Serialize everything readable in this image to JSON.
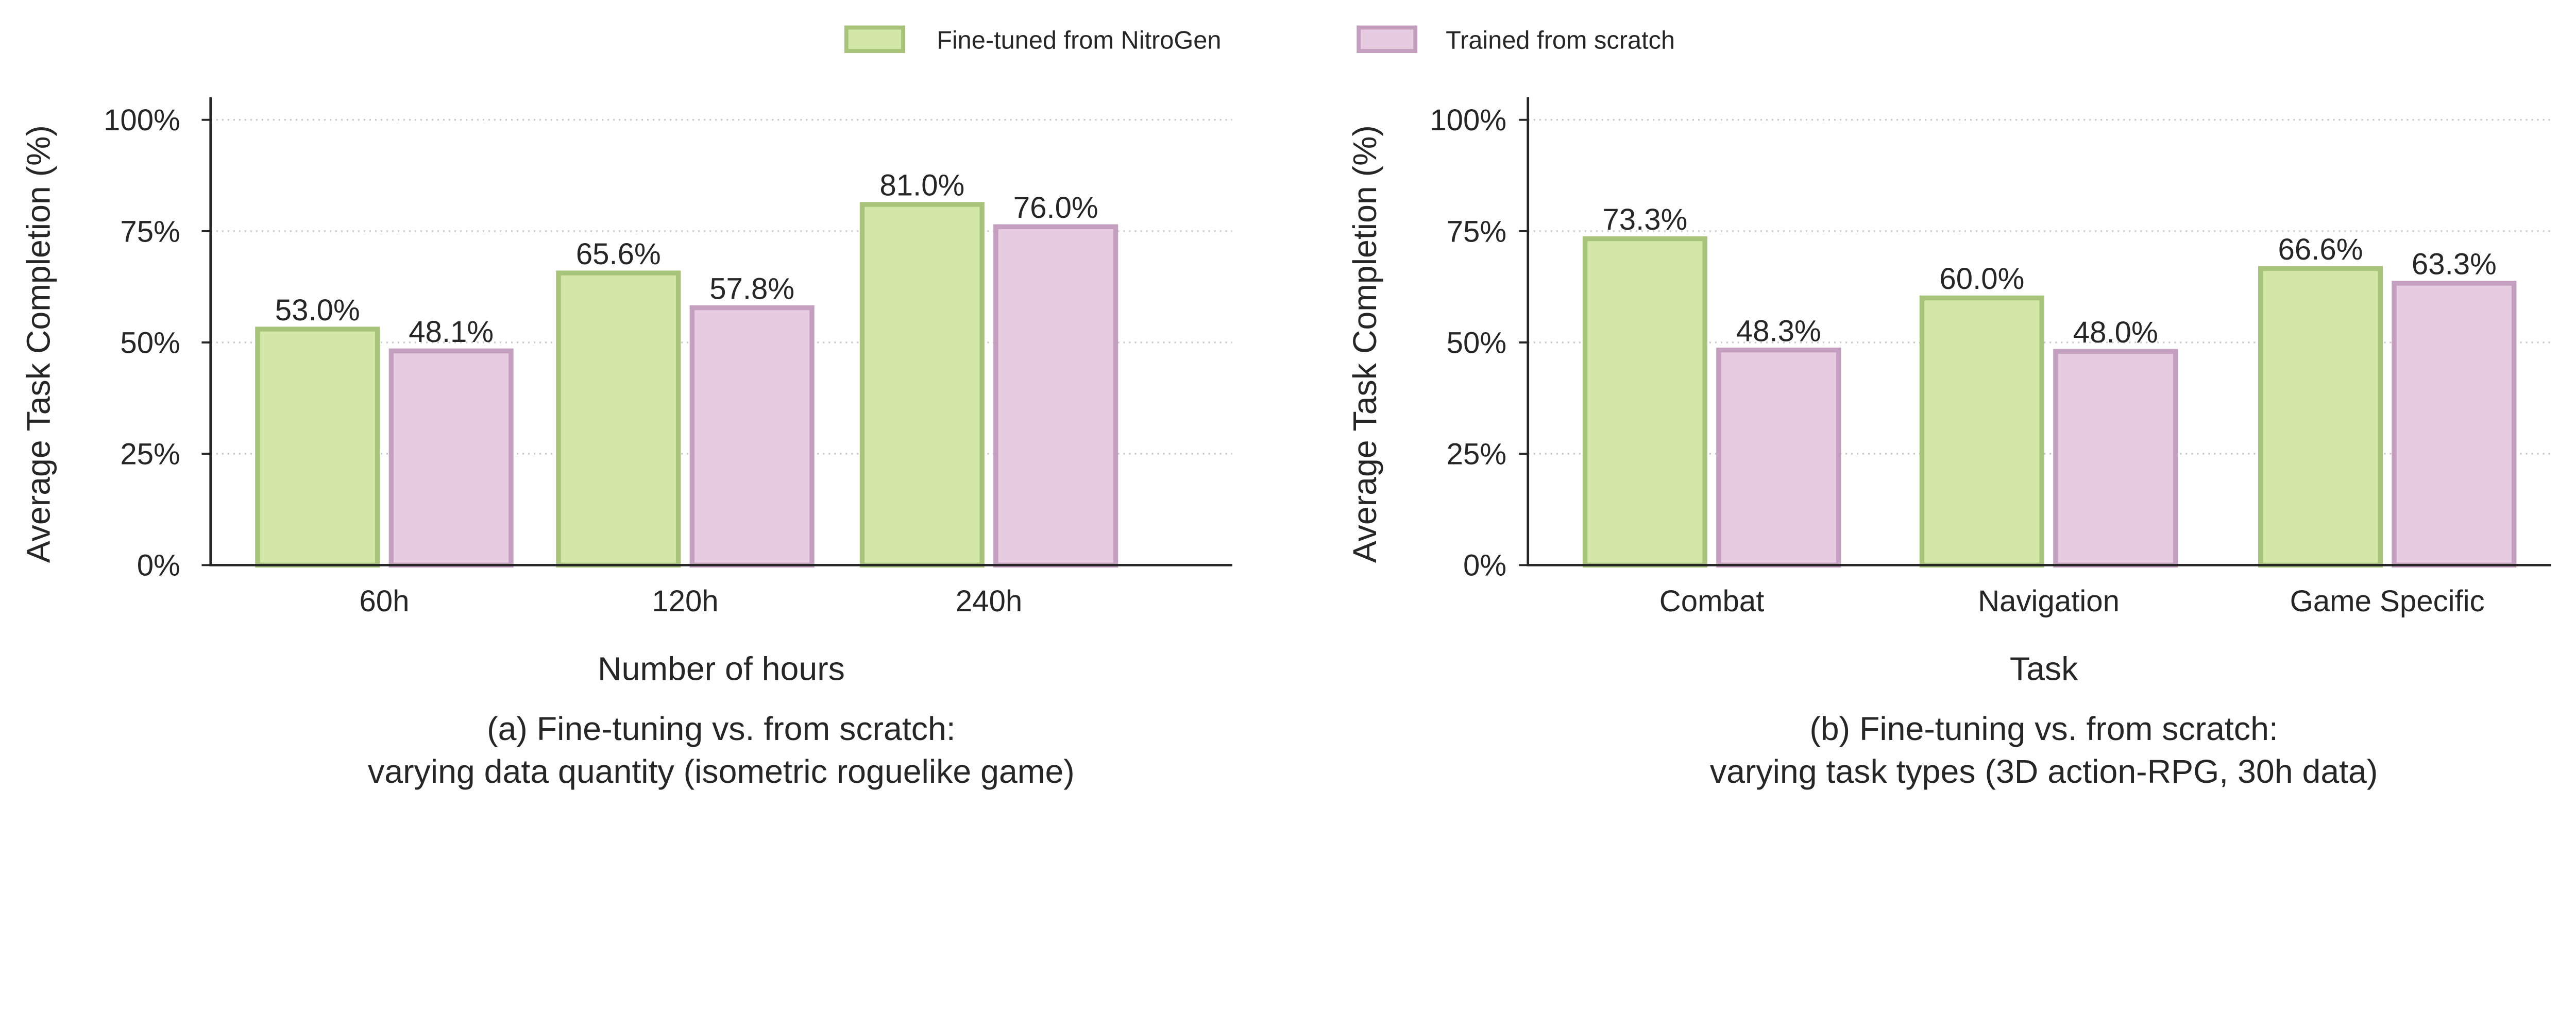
{
  "legend": {
    "items": [
      {
        "label": "Fine-tuned from NitroGen",
        "fill": "#d3e8a8",
        "edge": "#a8c47a"
      },
      {
        "label": "Trained from scratch",
        "fill": "#e7cbe0",
        "edge": "#c49fc0"
      }
    ],
    "placement": "top-center"
  },
  "chart_data": [
    {
      "type": "bar",
      "title": "",
      "caption_lines": [
        "(a) Fine-tuning vs. from scratch:",
        "varying data quantity (isometric roguelike game)"
      ],
      "xlabel": "Number of hours",
      "ylabel": "Average Task Completion (%)",
      "ylim": [
        0,
        105
      ],
      "yticks": [
        0,
        25,
        50,
        75,
        100
      ],
      "ytick_labels": [
        "0%",
        "25%",
        "50%",
        "75%",
        "100%"
      ],
      "grid": "y-dotted",
      "categories": [
        "60h",
        "120h",
        "240h"
      ],
      "series": [
        {
          "name": "Fine-tuned from NitroGen",
          "values": [
            53.0,
            65.6,
            81.0
          ],
          "labels": [
            "53.0%",
            "65.6%",
            "81.0%"
          ]
        },
        {
          "name": "Trained from scratch",
          "values": [
            48.1,
            57.8,
            76.0
          ],
          "labels": [
            "48.1%",
            "57.8%",
            "76.0%"
          ]
        }
      ]
    },
    {
      "type": "bar",
      "title": "",
      "caption_lines": [
        "(b) Fine-tuning vs. from scratch:",
        "varying task types (3D action-RPG, 30h data)"
      ],
      "xlabel": "Task",
      "ylabel": "Average Task Completion (%)",
      "ylim": [
        0,
        105
      ],
      "yticks": [
        0,
        25,
        50,
        75,
        100
      ],
      "ytick_labels": [
        "0%",
        "25%",
        "50%",
        "75%",
        "100%"
      ],
      "grid": "y-dotted",
      "categories": [
        "Combat",
        "Navigation",
        "Game Specific"
      ],
      "series": [
        {
          "name": "Fine-tuned from NitroGen",
          "values": [
            73.3,
            60.0,
            66.6
          ],
          "labels": [
            "73.3%",
            "60.0%",
            "66.6%"
          ]
        },
        {
          "name": "Trained from scratch",
          "values": [
            48.3,
            48.0,
            63.3
          ],
          "labels": [
            "48.3%",
            "48.0%",
            "63.3%"
          ]
        }
      ]
    }
  ]
}
